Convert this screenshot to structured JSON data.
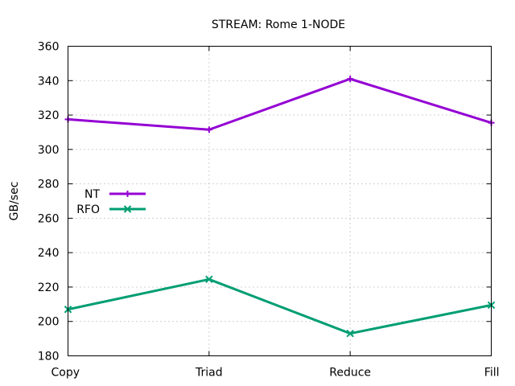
{
  "chart_data": {
    "type": "line",
    "title": "STREAM: Rome 1-NODE",
    "xlabel": "",
    "ylabel": "GB/sec",
    "categories": [
      "Copy",
      "Triad",
      "Reduce",
      "Fill"
    ],
    "ylim": [
      180,
      360
    ],
    "yticks": [
      180,
      200,
      220,
      240,
      260,
      280,
      300,
      320,
      340,
      360
    ],
    "grid": true,
    "legend_position": "left-middle",
    "series": [
      {
        "name": "NT",
        "values": [
          317.5,
          311.5,
          341,
          315.5
        ],
        "color": "#9400d3",
        "marker": "plus"
      },
      {
        "name": "RFO",
        "values": [
          207,
          224.5,
          193,
          209.5
        ],
        "color": "#009e73",
        "marker": "x"
      }
    ]
  }
}
